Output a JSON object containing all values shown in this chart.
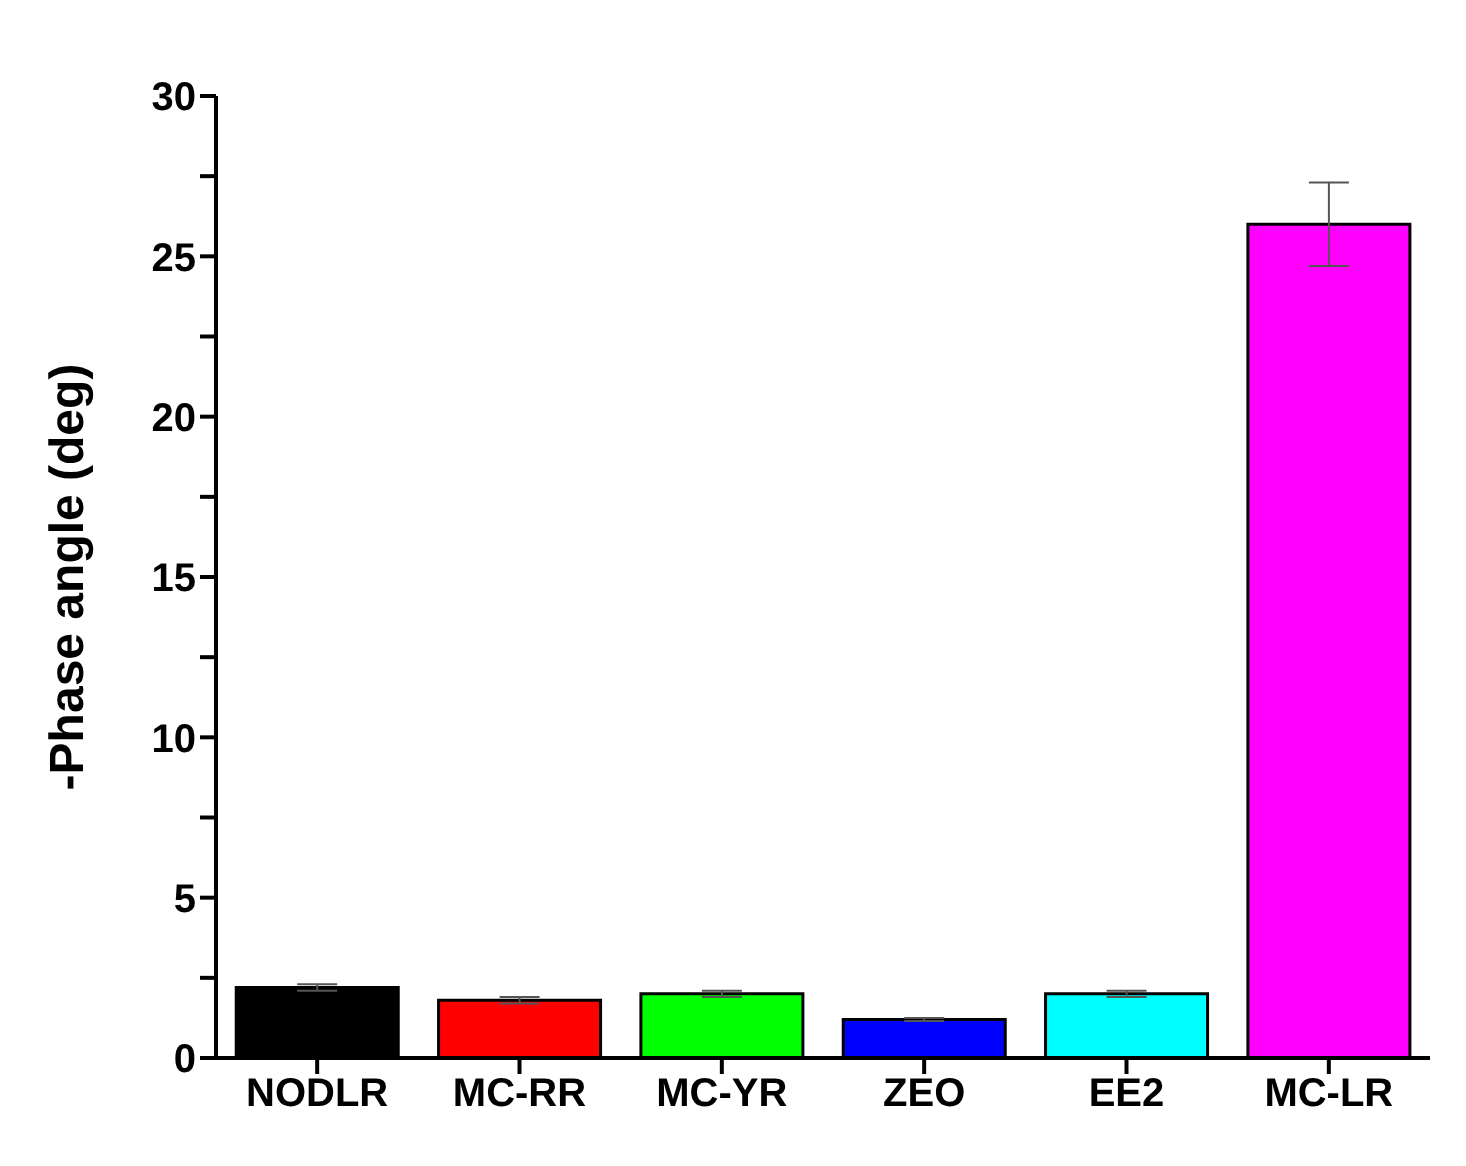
{
  "chart_data": {
    "type": "bar",
    "ylabel": "-Phase angle (deg)",
    "categories": [
      "NODLR",
      "MC-RR",
      "MC-YR",
      "ZEO",
      "EE2",
      "MC-LR"
    ],
    "values": [
      2.2,
      1.8,
      2.0,
      1.2,
      2.0,
      26.0
    ],
    "colors": [
      "#000000",
      "#ff0000",
      "#00ff00",
      "#0000ff",
      "#00ffff",
      "#ff00ff"
    ],
    "errors": [
      0.1,
      0.1,
      0.1,
      0.05,
      0.1,
      1.3
    ],
    "ylim": [
      0,
      30
    ],
    "yticks": [
      0,
      {
        "value": 2.5,
        "label": null
      },
      5,
      {
        "value": 7.5,
        "label": null
      },
      10,
      {
        "value": 12.5,
        "label": null
      },
      15,
      {
        "value": 17.5,
        "label": null
      },
      20,
      {
        "value": 22.5,
        "label": null
      },
      25,
      {
        "value": 27.5,
        "label": null
      },
      30
    ],
    "grid": false,
    "legend": false
  }
}
